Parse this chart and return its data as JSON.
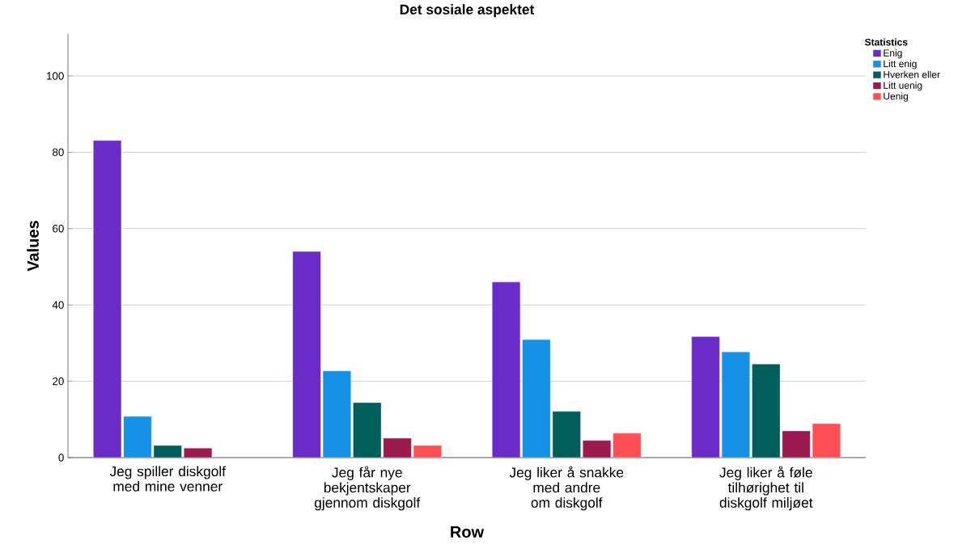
{
  "chart_data": {
    "type": "bar",
    "title": "Det sosiale aspektet",
    "xlabel": "Row",
    "ylabel": "Values",
    "legend_title": "Statistics",
    "categories": [
      "Jeg spiller diskgolf med mine venner",
      "Jeg får nye bekjentskaper gjennom diskgolf",
      "Jeg liker å snakke med andre om diskgolf",
      "Jeg liker å føle tilhørighet til diskgolf miljøet"
    ],
    "series": [
      {
        "name": "Enig",
        "color": "#6a2bc8",
        "values": [
          83.1,
          54.0,
          46.0,
          31.7
        ]
      },
      {
        "name": "Litt enig",
        "color": "#1591e6",
        "values": [
          10.8,
          22.7,
          30.9,
          27.7
        ]
      },
      {
        "name": "Hverken eller",
        "color": "#005f5a",
        "values": [
          3.2,
          14.4,
          12.1,
          24.5
        ]
      },
      {
        "name": "Litt uenig",
        "color": "#9c1b4f",
        "values": [
          2.5,
          5.1,
          4.5,
          7.0
        ]
      },
      {
        "name": "Uenig",
        "color": "#ff4f55",
        "values": [
          null,
          3.2,
          6.4,
          8.9
        ]
      }
    ],
    "ylim": [
      0,
      111
    ],
    "yticks": [
      0,
      20,
      40,
      60,
      80,
      100
    ],
    "grid": "y",
    "legend": "top right"
  }
}
